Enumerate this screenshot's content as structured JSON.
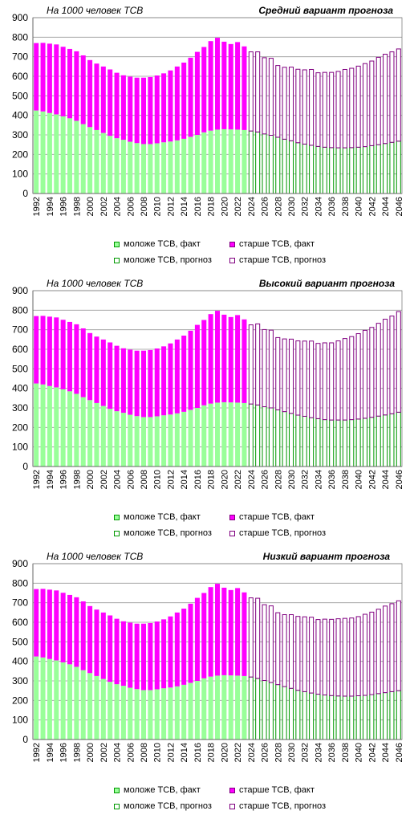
{
  "chart_data": [
    {
      "type": "bar",
      "stacked": true,
      "subtitle": "На 1000 человек ТСВ",
      "title": "Средний вариант прогноза",
      "ylim": [
        0,
        900
      ],
      "yticks": [
        0,
        100,
        200,
        300,
        400,
        500,
        600,
        700,
        800,
        900
      ],
      "grid": true,
      "legend_position": "bottom",
      "categories": [
        1992,
        1993,
        1994,
        1995,
        1996,
        1997,
        1998,
        1999,
        2000,
        2001,
        2002,
        2003,
        2004,
        2005,
        2006,
        2007,
        2008,
        2009,
        2010,
        2011,
        2012,
        2013,
        2014,
        2015,
        2016,
        2017,
        2018,
        2019,
        2020,
        2021,
        2022,
        2023,
        2024,
        2025,
        2026,
        2027,
        2028,
        2029,
        2030,
        2031,
        2032,
        2033,
        2034,
        2035,
        2036,
        2037,
        2038,
        2039,
        2040,
        2041,
        2042,
        2043,
        2044,
        2045,
        2046
      ],
      "xtick_labels": [
        "1992",
        "1994",
        "1996",
        "1998",
        "2000",
        "2002",
        "2004",
        "2006",
        "2008",
        "2010",
        "2012",
        "2014",
        "2016",
        "2018",
        "2020",
        "2022",
        "2024",
        "2026",
        "2028",
        "2030",
        "2032",
        "2034",
        "2036",
        "2038",
        "2040",
        "2042",
        "2044",
        "2046"
      ],
      "young": [
        425,
        420,
        412,
        405,
        395,
        385,
        372,
        355,
        340,
        325,
        310,
        295,
        283,
        275,
        265,
        258,
        253,
        253,
        257,
        262,
        266,
        272,
        280,
        290,
        300,
        313,
        322,
        327,
        329,
        328,
        327,
        325,
        320,
        315,
        305,
        298,
        288,
        278,
        270,
        260,
        253,
        247,
        241,
        237,
        235,
        234,
        234,
        235,
        237,
        240,
        245,
        250,
        256,
        262,
        268
      ],
      "old": [
        345,
        351,
        355,
        358,
        356,
        355,
        356,
        352,
        343,
        340,
        340,
        340,
        335,
        330,
        333,
        335,
        340,
        343,
        347,
        353,
        364,
        378,
        390,
        405,
        425,
        437,
        458,
        470,
        448,
        437,
        448,
        428,
        405,
        410,
        390,
        394,
        367,
        368,
        377,
        376,
        380,
        388,
        377,
        383,
        385,
        391,
        401,
        406,
        415,
        425,
        433,
        447,
        457,
        463,
        472
      ],
      "fact_until": 2023,
      "series": [
        {
          "name": "моложе ТСВ,  факт",
          "color": "#99ff99"
        },
        {
          "name": "старше ТСВ,  факт",
          "color": "#ff00ff"
        },
        {
          "name": "моложе ТСВ,  прогноз",
          "color": "#ffffff",
          "border": "#009900"
        },
        {
          "name": "старше ТСВ,  прогноз",
          "color": "#ffffff",
          "border": "#800080"
        }
      ]
    },
    {
      "type": "bar",
      "stacked": true,
      "subtitle": "На 1000 человек ТСВ",
      "title": "Высокий вариант прогноза",
      "ylim": [
        0,
        900
      ],
      "yticks": [
        0,
        100,
        200,
        300,
        400,
        500,
        600,
        700,
        800,
        900
      ],
      "grid": true,
      "legend_position": "bottom",
      "categories": [
        1992,
        1993,
        1994,
        1995,
        1996,
        1997,
        1998,
        1999,
        2000,
        2001,
        2002,
        2003,
        2004,
        2005,
        2006,
        2007,
        2008,
        2009,
        2010,
        2011,
        2012,
        2013,
        2014,
        2015,
        2016,
        2017,
        2018,
        2019,
        2020,
        2021,
        2022,
        2023,
        2024,
        2025,
        2026,
        2027,
        2028,
        2029,
        2030,
        2031,
        2032,
        2033,
        2034,
        2035,
        2036,
        2037,
        2038,
        2039,
        2040,
        2041,
        2042,
        2043,
        2044,
        2045,
        2046
      ],
      "xtick_labels": [
        "1992",
        "1994",
        "1996",
        "1998",
        "2000",
        "2002",
        "2004",
        "2006",
        "2008",
        "2010",
        "2012",
        "2014",
        "2016",
        "2018",
        "2020",
        "2022",
        "2024",
        "2026",
        "2028",
        "2030",
        "2032",
        "2034",
        "2036",
        "2038",
        "2040",
        "2042",
        "2044",
        "2046"
      ],
      "young": [
        425,
        420,
        412,
        405,
        395,
        385,
        372,
        355,
        340,
        325,
        310,
        295,
        283,
        275,
        265,
        258,
        253,
        253,
        257,
        262,
        266,
        272,
        280,
        290,
        300,
        313,
        322,
        327,
        329,
        328,
        327,
        325,
        320,
        315,
        306,
        300,
        290,
        281,
        272,
        263,
        257,
        250,
        245,
        240,
        238,
        238,
        238,
        240,
        243,
        247,
        252,
        258,
        264,
        270,
        278
      ],
      "old": [
        345,
        351,
        355,
        358,
        356,
        355,
        356,
        352,
        343,
        340,
        340,
        340,
        335,
        330,
        333,
        335,
        340,
        343,
        347,
        353,
        364,
        378,
        390,
        405,
        425,
        437,
        458,
        470,
        448,
        437,
        448,
        428,
        405,
        415,
        395,
        398,
        370,
        372,
        380,
        380,
        385,
        392,
        385,
        393,
        395,
        405,
        417,
        425,
        437,
        450,
        460,
        475,
        490,
        500,
        515
      ],
      "fact_until": 2023,
      "series": [
        {
          "name": "моложе ТСВ,  факт",
          "color": "#99ff99"
        },
        {
          "name": "старше ТСВ,  факт",
          "color": "#ff00ff"
        },
        {
          "name": "моложе ТСВ,  прогноз",
          "color": "#ffffff",
          "border": "#009900"
        },
        {
          "name": "старше ТСВ,  прогноз",
          "color": "#ffffff",
          "border": "#800080"
        }
      ]
    },
    {
      "type": "bar",
      "stacked": true,
      "subtitle": "На 1000 человек ТСВ",
      "title": "Низкий вариант прогноза",
      "ylim": [
        0,
        900
      ],
      "yticks": [
        0,
        100,
        200,
        300,
        400,
        500,
        600,
        700,
        800,
        900
      ],
      "grid": true,
      "legend_position": "bottom",
      "categories": [
        1992,
        1993,
        1994,
        1995,
        1996,
        1997,
        1998,
        1999,
        2000,
        2001,
        2002,
        2003,
        2004,
        2005,
        2006,
        2007,
        2008,
        2009,
        2010,
        2011,
        2012,
        2013,
        2014,
        2015,
        2016,
        2017,
        2018,
        2019,
        2020,
        2021,
        2022,
        2023,
        2024,
        2025,
        2026,
        2027,
        2028,
        2029,
        2030,
        2031,
        2032,
        2033,
        2034,
        2035,
        2036,
        2037,
        2038,
        2039,
        2040,
        2041,
        2042,
        2043,
        2044,
        2045,
        2046
      ],
      "xtick_labels": [
        "1992",
        "1994",
        "1996",
        "1998",
        "2000",
        "2002",
        "2004",
        "2006",
        "2008",
        "2010",
        "2012",
        "2014",
        "2016",
        "2018",
        "2020",
        "2022",
        "2024",
        "2026",
        "2028",
        "2030",
        "2032",
        "2034",
        "2036",
        "2038",
        "2040",
        "2042",
        "2044",
        "2046"
      ],
      "young": [
        425,
        420,
        412,
        405,
        395,
        385,
        372,
        355,
        340,
        325,
        310,
        295,
        283,
        275,
        265,
        258,
        253,
        253,
        257,
        262,
        266,
        272,
        280,
        290,
        300,
        313,
        322,
        327,
        329,
        328,
        327,
        325,
        320,
        313,
        302,
        292,
        281,
        271,
        262,
        252,
        245,
        238,
        232,
        228,
        225,
        223,
        222,
        222,
        224,
        226,
        230,
        235,
        240,
        245,
        250
      ],
      "old": [
        345,
        351,
        355,
        358,
        356,
        355,
        356,
        352,
        343,
        340,
        340,
        340,
        335,
        330,
        333,
        335,
        340,
        343,
        347,
        353,
        364,
        378,
        390,
        405,
        425,
        437,
        458,
        470,
        448,
        437,
        448,
        428,
        405,
        410,
        388,
        392,
        368,
        368,
        377,
        378,
        383,
        388,
        382,
        388,
        390,
        395,
        398,
        400,
        405,
        415,
        422,
        432,
        443,
        450,
        460
      ],
      "fact_until": 2023,
      "series": [
        {
          "name": "моложе ТСВ,  факт",
          "color": "#99ff99"
        },
        {
          "name": "старше ТСВ,  факт",
          "color": "#ff00ff"
        },
        {
          "name": "моложе ТСВ,  прогноз",
          "color": "#ffffff",
          "border": "#009900"
        },
        {
          "name": "старше ТСВ,  прогноз",
          "color": "#ffffff",
          "border": "#800080"
        }
      ]
    }
  ]
}
